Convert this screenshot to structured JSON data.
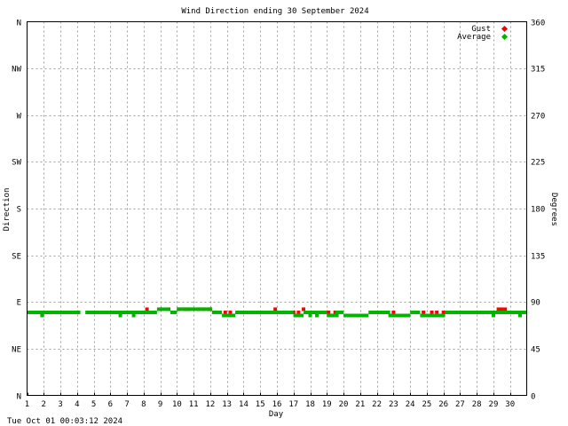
{
  "chart_data": {
    "type": "scatter",
    "title": "Wind Direction ending 30 September 2024",
    "xlabel": "Day",
    "ylabel_left": "Direction",
    "ylabel_right": "Degrees",
    "footer": "Tue Oct 01 00:03:12 2024",
    "xlim": [
      1,
      31
    ],
    "ylim": [
      0,
      360
    ],
    "grid": true,
    "legend_position": "top-right",
    "x_ticks": [
      "1",
      "2",
      "3",
      "4",
      "5",
      "6",
      "7",
      "8",
      "9",
      "10",
      "11",
      "12",
      "13",
      "14",
      "15",
      "16",
      "17",
      "18",
      "19",
      "20",
      "21",
      "22",
      "23",
      "24",
      "25",
      "26",
      "27",
      "28",
      "29",
      "30"
    ],
    "y_ticks_left": [
      {
        "value": 0,
        "label": "N"
      },
      {
        "value": 45,
        "label": "NE"
      },
      {
        "value": 90,
        "label": "E"
      },
      {
        "value": 135,
        "label": "SE"
      },
      {
        "value": 180,
        "label": "S"
      },
      {
        "value": 225,
        "label": "SW"
      },
      {
        "value": 270,
        "label": "W"
      },
      {
        "value": 315,
        "label": "NW"
      },
      {
        "value": 360,
        "label": "N"
      }
    ],
    "y_ticks_right": [
      0,
      45,
      90,
      135,
      180,
      225,
      270,
      315,
      360
    ],
    "series": [
      {
        "name": "Gust",
        "color": "#ff0000",
        "points": [
          [
            8.2,
            83
          ],
          [
            9.0,
            83
          ],
          [
            9.5,
            83
          ],
          [
            10.1,
            83
          ],
          [
            10.5,
            83
          ],
          [
            10.7,
            83
          ],
          [
            11.3,
            83
          ],
          [
            11.6,
            83
          ],
          [
            11.9,
            83
          ],
          [
            12.0,
            83
          ],
          [
            12.9,
            80
          ],
          [
            13.2,
            80
          ],
          [
            15.9,
            83
          ],
          [
            17.0,
            80
          ],
          [
            17.3,
            80
          ],
          [
            17.6,
            83
          ],
          [
            19.1,
            80
          ],
          [
            19.5,
            80
          ],
          [
            23.0,
            80
          ],
          [
            24.4,
            80
          ],
          [
            24.8,
            80
          ],
          [
            25.3,
            80
          ],
          [
            25.6,
            80
          ],
          [
            26.0,
            80
          ],
          [
            29.3,
            83
          ],
          [
            29.5,
            83
          ],
          [
            29.7,
            83
          ]
        ]
      },
      {
        "name": "Average",
        "color": "#00b400",
        "segments": [
          [
            1.0,
            4.2,
            80
          ],
          [
            4.5,
            8.8,
            80
          ],
          [
            8.8,
            9.6,
            83
          ],
          [
            9.6,
            10.0,
            80
          ],
          [
            10.0,
            12.1,
            83
          ],
          [
            12.1,
            12.7,
            80
          ],
          [
            12.7,
            13.5,
            77
          ],
          [
            13.5,
            17.0,
            80
          ],
          [
            17.0,
            17.6,
            77
          ],
          [
            17.6,
            19.0,
            80
          ],
          [
            19.0,
            19.5,
            77
          ],
          [
            19.5,
            20.0,
            80
          ],
          [
            20.0,
            21.5,
            77
          ],
          [
            21.5,
            22.8,
            80
          ],
          [
            22.8,
            24.0,
            77
          ],
          [
            24.0,
            24.6,
            80
          ],
          [
            24.6,
            26.1,
            77
          ],
          [
            26.1,
            31.0,
            80
          ]
        ],
        "points": [
          [
            1.9,
            77
          ],
          [
            6.6,
            77
          ],
          [
            7.4,
            77
          ],
          [
            17.1,
            77
          ],
          [
            18.0,
            77
          ],
          [
            18.4,
            77
          ],
          [
            19.3,
            77
          ],
          [
            19.6,
            77
          ],
          [
            22.8,
            77
          ],
          [
            23.9,
            77
          ],
          [
            25.0,
            77
          ],
          [
            29.0,
            77
          ],
          [
            30.6,
            77
          ]
        ]
      }
    ]
  }
}
